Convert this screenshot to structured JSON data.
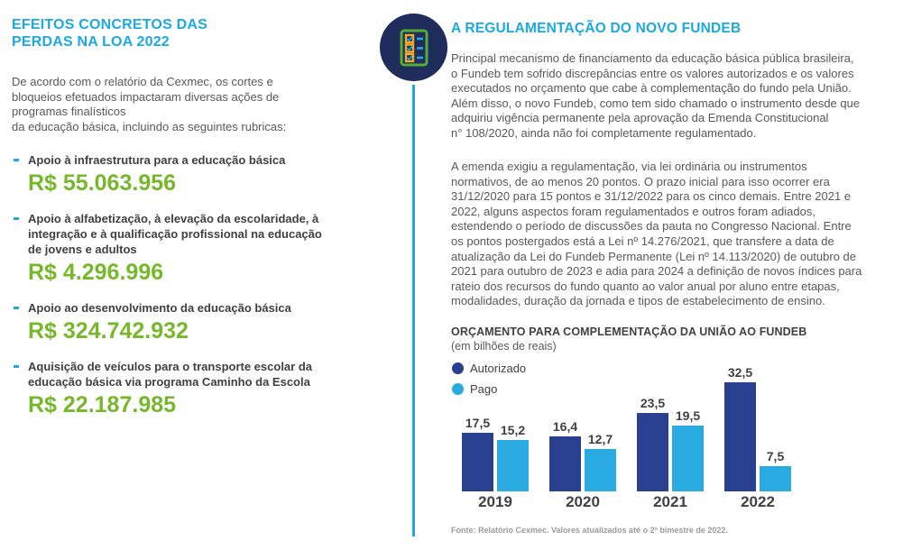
{
  "left": {
    "title": "EFEITOS CONCRETOS DAS\nPERDAS NA LOA 2022",
    "intro": "De acordo com o relatório da Cexmec, os cortes e\nbloqueios efetuados impactaram diversas ações de\nprogramas finalísticos\nda educação básica, incluindo as seguintes rubricas:",
    "bullets": [
      {
        "label": "Apoio à infraestrutura para a educação básica",
        "value": "R$ 55.063.956"
      },
      {
        "label": "Apoio à alfabetização, à elevação da escolaridade, à\nintegração e à qualificação profissional na educação\nde jovens e adultos",
        "value": "R$ 4.296.996"
      },
      {
        "label": "Apoio ao desenvolvimento da educação básica",
        "value": "R$ 324.742.932"
      },
      {
        "label": "Aquisição de veículos para o transporte escolar da\neducação básica via programa Caminho da Escola",
        "value": "R$ 22.187.985"
      }
    ]
  },
  "right": {
    "title": "A REGULAMENTAÇÃO DO NOVO FUNDEB",
    "paragraph1": "Principal mecanismo de financiamento da educação básica pública brasileira,\no Fundeb tem sofrido discrepâncias entre os valores autorizados e os valores\nexecutados no orçamento que cabe à complementação do fundo pela União.\nAlém disso, o novo Fundeb, como tem sido chamado o instrumento desde que\nadquiriu vigência permanente pela aprovação da Emenda Constitucional\nn° 108/2020, ainda não foi completamente regulamentado.",
    "paragraph2": "A emenda exigiu a regulamentação, via lei ordinária ou instrumentos\nnormativos, de ao menos 20 pontos. O prazo inicial para isso ocorrer era\n31/12/2020 para 15 pontos e 31/12/2022 para os cinco demais. Entre 2021 e\n2022, alguns aspectos foram regulamentados e outros foram adiados,\nestendendo o período de discussões da pauta no Congresso Nacional. Entre\nos pontos postergados está a Lei nº 14.276/2021, que transfere a data de\natualização da Lei do Fundeb Permanente (Lei nº 14.113/2020) de outubro de\n2021 para outubro de 2023 e adia para 2024 a definição de novos índices para\nrateio dos recursos do fundo quanto ao valor anual por aluno entre etapas,\nmodalidades, duração da jornada e tipos de estabelecimento de ensino.",
    "source": "Fonte: Relatório Cexmec. Valores atualizados até o 2º bimestre de 2022."
  },
  "chart_data": {
    "type": "bar",
    "title": "ORÇAMENTO PARA COMPLEMENTAÇÃO DA UNIÃO AO FUNDEB",
    "subtitle": "(em bilhões de reais)",
    "categories": [
      "2019",
      "2020",
      "2021",
      "2022"
    ],
    "series": [
      {
        "name": "Autorizado",
        "color": "#293f8f",
        "values": [
          17.5,
          16.4,
          23.5,
          32.5
        ],
        "labels": [
          "17,5",
          "16,4",
          "23,5",
          "32,5"
        ]
      },
      {
        "name": "Pago",
        "color": "#29abe2",
        "values": [
          15.2,
          12.7,
          19.5,
          7.5
        ],
        "labels": [
          "15,2",
          "12,7",
          "19,5",
          "7,5"
        ]
      }
    ],
    "ylim": [
      0,
      35
    ],
    "grid": false,
    "legend_position": "top-left"
  },
  "icons": {
    "checklist_icon": "checklist-clipboard",
    "bullet_marker": "dash"
  },
  "colors": {
    "accent_cyan": "#1ca9e2",
    "green": "#76b82a",
    "navy_bar": "#293f8f",
    "cyan_bar": "#29abe2",
    "icon_navy": "#1f2c5c",
    "icon_green": "#52ae32",
    "icon_orange": "#f7a823",
    "body_text": "#58595b",
    "dark_label": "#414042",
    "source_gray": "#9a9c9e"
  }
}
